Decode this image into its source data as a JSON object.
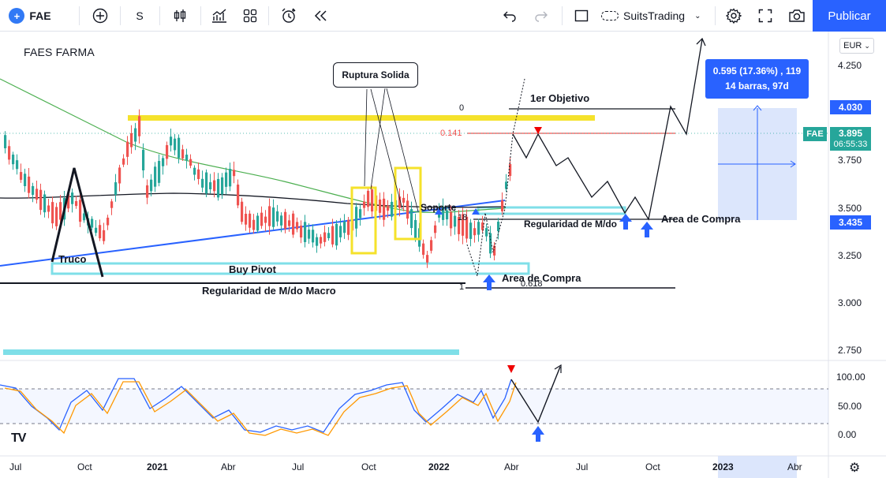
{
  "toolbar": {
    "symbol": "FAE",
    "interval": "S",
    "account": "SuitsTrading",
    "publish": "Publicar"
  },
  "chart": {
    "title": "FAES FARMA",
    "currency": "EUR",
    "price_labels": [
      "4.250",
      "3.750",
      "3.500",
      "3.250",
      "3.000",
      "2.750"
    ],
    "osc_labels": [
      "100.00",
      "50.00",
      "0.00"
    ],
    "x_labels": [
      "Jul",
      "Oct",
      "2021",
      "Abr",
      "Jul",
      "Oct",
      "2022",
      "Abr",
      "Jul",
      "Oct",
      "2023",
      "Abr"
    ],
    "tags": {
      "top": "4.030",
      "current": "3.895",
      "countdown": "06:55:33",
      "bottom": "3.435",
      "ticker": "FAE"
    },
    "range_info": {
      "line1": "0.595 (17.36%) , 119",
      "line2": "14 barras, 97d"
    },
    "annotations": {
      "ruptura": "Ruptura Solida",
      "objetivo": "1er Objetivo",
      "soporte": "Soporte",
      "regularidad": "Regularidad de M/do",
      "area_compra_1": "Area de Compra",
      "area_compra_2": "Area de Compra",
      "truco": "Truco",
      "buy_pivot": "Buy Pivot",
      "regularidad_macro": "Regularidad de M/do Macro"
    },
    "fib": {
      "f0": "0",
      "f141": "0.141",
      "f1": "1",
      "f618": "0.618",
      "f18": "18"
    },
    "colors": {
      "up": "#26a69a",
      "down": "#ef5350",
      "yellow": "#f5e22b",
      "cyan": "#7fdfe8",
      "blue": "#2962ff",
      "green_ma": "#4caf50"
    }
  }
}
